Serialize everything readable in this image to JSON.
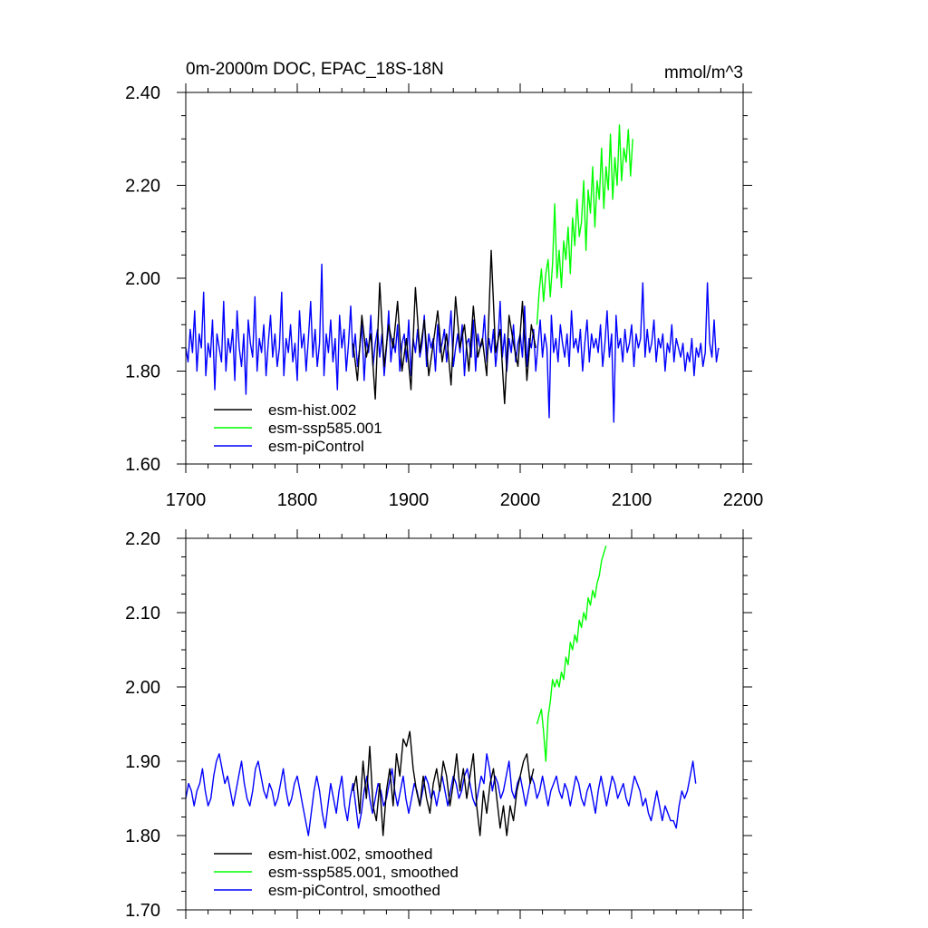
{
  "chart_data": [
    {
      "type": "line",
      "title": "0m-2000m DOC, EPAC_18S-18N",
      "units": "mmol/m^3",
      "xlim": [
        1700,
        2200
      ],
      "ylim": [
        1.6,
        2.4
      ],
      "x_ticks": [
        1700,
        1800,
        1900,
        2000,
        2100,
        2200
      ],
      "x_tick_labels": [
        "1700",
        "1800",
        "1900",
        "2000",
        "2100",
        "2200"
      ],
      "y_ticks": [
        1.6,
        1.8,
        2.0,
        2.2,
        2.4
      ],
      "y_tick_labels": [
        "1.60",
        "1.80",
        "2.00",
        "2.20",
        "2.40"
      ],
      "legend_position": "lower-left",
      "series": [
        {
          "name": "esm-hist.002",
          "color": "#000000",
          "x_start": 1850,
          "x_step": 4,
          "values": [
            1.86,
            1.78,
            1.92,
            1.83,
            1.88,
            1.74,
            1.99,
            1.81,
            1.9,
            1.85,
            1.95,
            1.8,
            1.87,
            1.76,
            1.98,
            1.84,
            1.91,
            1.79,
            1.86,
            1.93,
            1.82,
            1.88,
            1.77,
            1.96,
            1.85,
            1.9,
            1.8,
            1.94,
            1.83,
            1.87,
            1.79,
            2.06,
            1.84,
            1.89,
            1.73,
            1.92,
            1.86,
            1.81,
            1.95,
            1.78,
            1.9,
            1.85
          ]
        },
        {
          "name": "esm-ssp585.001",
          "color": "#00ff00",
          "x_start": 2015,
          "x_step": 2,
          "values": [
            1.9,
            1.97,
            2.02,
            1.95,
            2.01,
            2.04,
            1.96,
            2.03,
            2.16,
            2.0,
            2.06,
            1.98,
            2.08,
            2.04,
            2.11,
            2.01,
            2.13,
            2.07,
            2.17,
            2.09,
            2.12,
            2.21,
            2.06,
            2.19,
            2.14,
            2.24,
            2.11,
            2.21,
            2.17,
            2.28,
            2.15,
            2.24,
            2.19,
            2.31,
            2.17,
            2.26,
            2.2,
            2.33,
            2.21,
            2.28,
            2.25,
            2.32,
            2.22,
            2.3
          ]
        },
        {
          "name": "esm-piControl",
          "color": "#0000ff",
          "x_start": 1700,
          "x_step": 2,
          "values": [
            1.85,
            1.82,
            1.89,
            1.84,
            1.93,
            1.8,
            1.88,
            1.85,
            1.97,
            1.79,
            1.86,
            1.83,
            1.91,
            1.76,
            1.88,
            1.85,
            1.82,
            1.95,
            1.8,
            1.87,
            1.84,
            1.89,
            1.78,
            1.93,
            1.85,
            1.81,
            1.88,
            1.75,
            1.91,
            1.86,
            1.83,
            1.96,
            1.8,
            1.87,
            1.84,
            1.9,
            1.79,
            1.86,
            1.92,
            1.83,
            1.88,
            1.81,
            1.85,
            1.97,
            1.79,
            1.87,
            1.84,
            1.9,
            1.82,
            1.86,
            1.78,
            1.93,
            1.85,
            1.88,
            1.8,
            1.87,
            1.95,
            1.83,
            1.89,
            1.81,
            1.86,
            2.03,
            1.79,
            1.88,
            1.84,
            1.91,
            1.82,
            1.87,
            1.76,
            1.92,
            1.85,
            1.89,
            1.8,
            1.86,
            1.94,
            1.83,
            1.88,
            1.81,
            1.85,
            1.9,
            1.78,
            1.87,
            1.84,
            1.92,
            1.81,
            1.86,
            1.89,
            1.83,
            1.88,
            1.79,
            1.85,
            1.93,
            1.82,
            1.87,
            1.84,
            1.9,
            1.8,
            1.86,
            1.88,
            1.82,
            1.91,
            1.79,
            1.87,
            1.84,
            1.89,
            1.83,
            1.86,
            1.92,
            1.81,
            1.88,
            1.85,
            1.87,
            1.8,
            1.9,
            1.84,
            1.86,
            1.89,
            1.82,
            1.87,
            1.93,
            1.81,
            1.85,
            1.88,
            1.84,
            1.9,
            1.79,
            1.86,
            1.87,
            1.83,
            1.91,
            1.8,
            1.88,
            1.85,
            1.86,
            1.92,
            1.82,
            1.87,
            1.84,
            1.89,
            1.81,
            1.86,
            1.95,
            1.83,
            1.88,
            1.8,
            1.87,
            1.84,
            1.9,
            1.82,
            1.86,
            1.88,
            1.83,
            1.94,
            1.81,
            1.87,
            1.85,
            1.89,
            1.8,
            1.86,
            1.91,
            1.83,
            1.88,
            1.85,
            1.7,
            1.92,
            1.84,
            1.87,
            1.82,
            1.9,
            1.86,
            1.83,
            1.88,
            1.81,
            1.93,
            1.85,
            1.87,
            1.84,
            1.89,
            1.8,
            1.86,
            1.91,
            1.82,
            1.88,
            1.85,
            1.87,
            1.84,
            1.9,
            1.81,
            1.86,
            1.93,
            1.83,
            1.88,
            1.69,
            1.92,
            1.85,
            1.87,
            1.82,
            1.89,
            1.84,
            1.86,
            1.9,
            1.81,
            1.88,
            1.85,
            1.87,
            1.99,
            1.83,
            1.89,
            1.84,
            1.86,
            1.91,
            1.82,
            1.87,
            1.85,
            1.88,
            1.8,
            1.86,
            1.84,
            1.9,
            1.82,
            1.87,
            1.85,
            1.83,
            1.86,
            1.8,
            1.84,
            1.82,
            1.87,
            1.79,
            1.85,
            1.83,
            1.86,
            1.81,
            1.84,
            1.99,
            1.86,
            1.83,
            1.91,
            1.82,
            1.85
          ]
        }
      ]
    },
    {
      "type": "line",
      "xlim": [
        1700,
        2200
      ],
      "ylim": [
        1.7,
        2.2
      ],
      "x_ticks": [
        1700,
        1800,
        1900,
        2000,
        2100,
        2200
      ],
      "y_ticks": [
        1.7,
        1.8,
        1.9,
        2.0,
        2.1,
        2.2
      ],
      "y_tick_labels": [
        "1.70",
        "1.80",
        "1.90",
        "2.00",
        "2.10",
        "2.20"
      ],
      "legend_position": "lower-left",
      "series": [
        {
          "name": "esm-hist.002, smoothed",
          "color": "#000000",
          "x_start": 1850,
          "x_step": 3,
          "values": [
            1.86,
            1.88,
            1.83,
            1.9,
            1.85,
            1.92,
            1.84,
            1.82,
            1.87,
            1.8,
            1.86,
            1.89,
            1.84,
            1.91,
            1.88,
            1.93,
            1.92,
            1.94,
            1.89,
            1.86,
            1.84,
            1.88,
            1.85,
            1.83,
            1.87,
            1.89,
            1.86,
            1.9,
            1.88,
            1.84,
            1.87,
            1.91,
            1.86,
            1.89,
            1.85,
            1.88,
            1.91,
            1.84,
            1.8,
            1.86,
            1.83,
            1.87,
            1.89,
            1.85,
            1.81,
            1.84,
            1.8,
            1.84,
            1.82,
            1.86,
            1.88,
            1.9,
            1.91,
            1.87,
            1.89
          ]
        },
        {
          "name": "esm-ssp585.001, smoothed",
          "color": "#00ff00",
          "x_start": 2015,
          "x_step": 2,
          "values": [
            1.95,
            1.96,
            1.97,
            1.94,
            1.9,
            1.96,
            1.98,
            2.01,
            2.0,
            2.01,
            2.0,
            2.02,
            2.01,
            2.04,
            2.03,
            2.06,
            2.05,
            2.07,
            2.06,
            2.09,
            2.08,
            2.1,
            2.09,
            2.12,
            2.11,
            2.13,
            2.12,
            2.14,
            2.15,
            2.17,
            2.18,
            2.19
          ]
        },
        {
          "name": "esm-piControl, smoothed",
          "color": "#0000ff",
          "x_start": 1700,
          "x_step": 2.5,
          "values": [
            1.85,
            1.87,
            1.86,
            1.84,
            1.86,
            1.87,
            1.89,
            1.86,
            1.84,
            1.85,
            1.88,
            1.9,
            1.91,
            1.89,
            1.87,
            1.88,
            1.86,
            1.84,
            1.86,
            1.88,
            1.9,
            1.87,
            1.85,
            1.84,
            1.86,
            1.89,
            1.9,
            1.88,
            1.86,
            1.85,
            1.87,
            1.86,
            1.84,
            1.85,
            1.87,
            1.89,
            1.86,
            1.84,
            1.85,
            1.87,
            1.88,
            1.86,
            1.84,
            1.82,
            1.8,
            1.83,
            1.86,
            1.88,
            1.86,
            1.83,
            1.81,
            1.84,
            1.87,
            1.85,
            1.83,
            1.86,
            1.88,
            1.84,
            1.82,
            1.85,
            1.87,
            1.84,
            1.81,
            1.83,
            1.86,
            1.88,
            1.85,
            1.83,
            1.85,
            1.87,
            1.86,
            1.84,
            1.85,
            1.87,
            1.89,
            1.86,
            1.84,
            1.86,
            1.88,
            1.85,
            1.83,
            1.85,
            1.87,
            1.86,
            1.84,
            1.86,
            1.88,
            1.87,
            1.85,
            1.86,
            1.84,
            1.86,
            1.88,
            1.86,
            1.84,
            1.86,
            1.88,
            1.87,
            1.85,
            1.86,
            1.88,
            1.89,
            1.87,
            1.85,
            1.84,
            1.86,
            1.88,
            1.87,
            1.91,
            1.89,
            1.86,
            1.88,
            1.87,
            1.85,
            1.86,
            1.88,
            1.9,
            1.86,
            1.85,
            1.87,
            1.88,
            1.86,
            1.84,
            1.86,
            1.88,
            1.87,
            1.85,
            1.86,
            1.88,
            1.86,
            1.84,
            1.86,
            1.87,
            1.88,
            1.86,
            1.85,
            1.87,
            1.86,
            1.84,
            1.86,
            1.88,
            1.87,
            1.85,
            1.84,
            1.86,
            1.87,
            1.85,
            1.83,
            1.86,
            1.88,
            1.86,
            1.84,
            1.86,
            1.88,
            1.87,
            1.85,
            1.86,
            1.87,
            1.85,
            1.84,
            1.86,
            1.88,
            1.87,
            1.86,
            1.84,
            1.85,
            1.83,
            1.82,
            1.84,
            1.86,
            1.84,
            1.82,
            1.84,
            1.83,
            1.82,
            1.82,
            1.81,
            1.84,
            1.86,
            1.85,
            1.86,
            1.88,
            1.9,
            1.87
          ]
        }
      ]
    }
  ]
}
